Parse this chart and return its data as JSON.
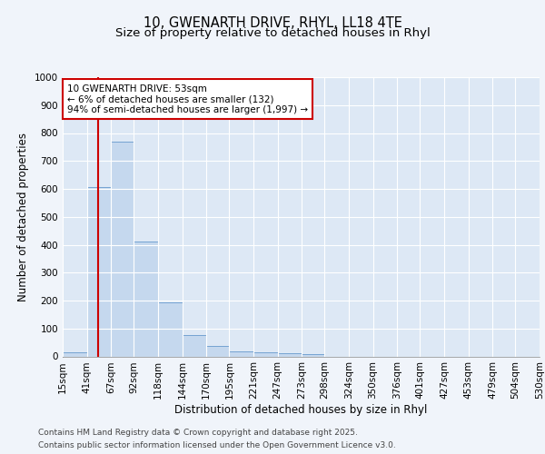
{
  "title_line1": "10, GWENARTH DRIVE, RHYL, LL18 4TE",
  "title_line2": "Size of property relative to detached houses in Rhyl",
  "xlabel": "Distribution of detached houses by size in Rhyl",
  "ylabel": "Number of detached properties",
  "bin_labels": [
    "15sqm",
    "41sqm",
    "67sqm",
    "92sqm",
    "118sqm",
    "144sqm",
    "170sqm",
    "195sqm",
    "221sqm",
    "247sqm",
    "273sqm",
    "298sqm",
    "324sqm",
    "350sqm",
    "376sqm",
    "401sqm",
    "427sqm",
    "453sqm",
    "479sqm",
    "504sqm",
    "530sqm"
  ],
  "bin_edges": [
    15,
    41,
    67,
    92,
    118,
    144,
    170,
    195,
    221,
    247,
    273,
    298,
    324,
    350,
    376,
    401,
    427,
    453,
    479,
    504,
    530
  ],
  "bar_heights": [
    15,
    607,
    770,
    410,
    193,
    75,
    37,
    18,
    15,
    12,
    8,
    0,
    0,
    0,
    0,
    0,
    0,
    0,
    0,
    0
  ],
  "bar_color": "#c5d8ee",
  "bar_edge_color": "#6699cc",
  "property_line_x": 53,
  "property_line_color": "#cc0000",
  "annotation_text": "10 GWENARTH DRIVE: 53sqm\n← 6% of detached houses are smaller (132)\n94% of semi-detached houses are larger (1,997) →",
  "annotation_box_facecolor": "#ffffff",
  "annotation_box_edgecolor": "#cc0000",
  "ylim": [
    0,
    1000
  ],
  "yticks": [
    0,
    100,
    200,
    300,
    400,
    500,
    600,
    700,
    800,
    900,
    1000
  ],
  "footnote_line1": "Contains HM Land Registry data © Crown copyright and database right 2025.",
  "footnote_line2": "Contains public sector information licensed under the Open Government Licence v3.0.",
  "fig_facecolor": "#f0f4fa",
  "plot_facecolor": "#dde8f5",
  "title_fontsize": 10.5,
  "subtitle_fontsize": 9.5,
  "axis_label_fontsize": 8.5,
  "tick_fontsize": 7.5,
  "annotation_fontsize": 7.5,
  "footnote_fontsize": 6.5
}
